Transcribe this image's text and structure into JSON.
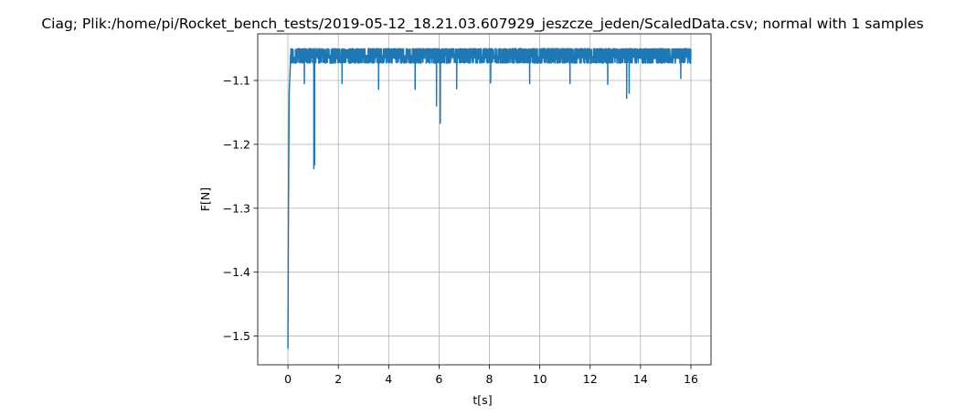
{
  "chart_data": {
    "type": "line",
    "title": "Ciag; Plik:/home/pi/Rocket_bench_tests/2019-05-12_18.21.03.607929_jeszcze_jeden/ScaledData.csv; normal with 1 samples",
    "xlabel": "t[s]",
    "ylabel": "F[N]",
    "xlim": [
      -1.2,
      16.8
    ],
    "ylim": [
      -1.545,
      -1.027
    ],
    "x_ticks": [
      0,
      2,
      4,
      6,
      8,
      10,
      12,
      14,
      16
    ],
    "x_tick_labels": [
      "0",
      "2",
      "4",
      "6",
      "8",
      "10",
      "12",
      "14",
      "16"
    ],
    "y_ticks": [
      -1.1,
      -1.2,
      -1.3,
      -1.4,
      -1.5
    ],
    "y_tick_labels": [
      "−1.1",
      "−1.2",
      "−1.3",
      "−1.4",
      "−1.5"
    ],
    "grid": true,
    "series": [
      {
        "color": "#1f77b4",
        "x_range": [
          0,
          16
        ],
        "baseline": -1.063,
        "noise_band": [
          -1.072,
          -1.051
        ],
        "points": [
          [
            0.0,
            -1.52
          ],
          [
            0.02,
            -1.3
          ],
          [
            0.05,
            -1.12
          ],
          [
            0.1,
            -1.07
          ],
          [
            1.0,
            -1.07
          ],
          [
            1.03,
            -1.238
          ],
          [
            1.06,
            -1.233
          ],
          [
            1.1,
            -1.07
          ],
          [
            6.0,
            -1.07
          ],
          [
            6.03,
            -1.165
          ],
          [
            6.06,
            -1.07
          ],
          [
            16.0,
            -1.06
          ]
        ],
        "dips": [
          [
            0.65,
            -1.105
          ],
          [
            2.15,
            -1.105
          ],
          [
            3.6,
            -1.114
          ],
          [
            5.05,
            -1.114
          ],
          [
            5.9,
            -1.14
          ],
          [
            6.05,
            -1.167
          ],
          [
            6.7,
            -1.113
          ],
          [
            8.05,
            -1.104
          ],
          [
            9.6,
            -1.105
          ],
          [
            11.2,
            -1.105
          ],
          [
            12.7,
            -1.106
          ],
          [
            13.45,
            -1.128
          ],
          [
            13.55,
            -1.12
          ],
          [
            15.6,
            -1.097
          ]
        ]
      }
    ]
  }
}
